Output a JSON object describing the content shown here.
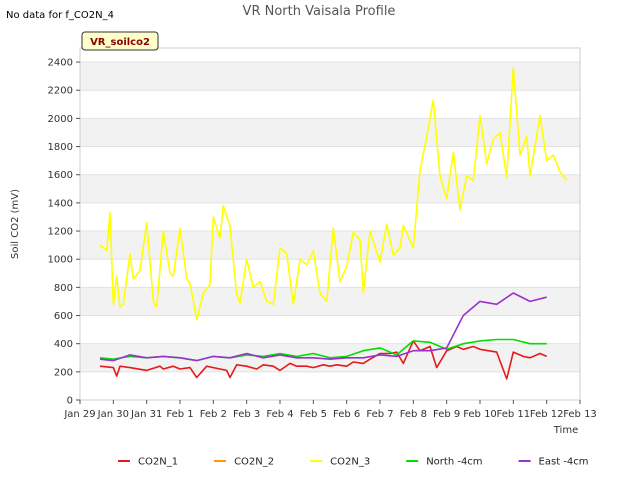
{
  "header": {
    "no_data_text": "No data for f_CO2N_4",
    "tag_label": "VR_soilco2"
  },
  "chart_data": {
    "type": "line",
    "title": "VR North Vaisala Profile",
    "xlabel": "Time",
    "ylabel": "Soil CO2 (mV)",
    "ylim": [
      0,
      2500
    ],
    "xlim": [
      0,
      15
    ],
    "y_ticks": [
      0,
      200,
      400,
      600,
      800,
      1000,
      1200,
      1400,
      1600,
      1800,
      2000,
      2200,
      2400
    ],
    "x_ticks": [
      0,
      1,
      2,
      3,
      4,
      5,
      6,
      7,
      8,
      9,
      10,
      11,
      12,
      13,
      14,
      15
    ],
    "x_tick_labels": [
      "Jan 29",
      "Jan 30",
      "Jan 31",
      "Feb 1",
      "Feb 2",
      "Feb 3",
      "Feb 4",
      "Feb 5",
      "Feb 6",
      "Feb 7",
      "Feb 8",
      "Feb 9",
      "Feb 10",
      "Feb 11",
      "Feb 12",
      "Feb 13"
    ],
    "grid": "horizontal bands",
    "legend_position": "bottom",
    "series": [
      {
        "name": "CO2N_1",
        "color": "#e41a1c",
        "x": [
          0.6,
          1.0,
          1.1,
          1.2,
          1.5,
          2.0,
          2.4,
          2.5,
          2.8,
          3.0,
          3.3,
          3.5,
          3.8,
          4.0,
          4.4,
          4.5,
          4.7,
          5.0,
          5.3,
          5.5,
          5.8,
          6.0,
          6.3,
          6.5,
          6.8,
          7.0,
          7.3,
          7.5,
          7.7,
          8.0,
          8.2,
          8.5,
          8.7,
          9.0,
          9.3,
          9.5,
          9.7,
          10.0,
          10.2,
          10.5,
          10.7,
          11.0,
          11.3,
          11.5,
          11.8,
          12.0,
          12.5,
          12.8,
          13.0,
          13.3,
          13.5,
          13.8,
          14.0
        ],
        "y": [
          240,
          230,
          170,
          240,
          230,
          210,
          240,
          220,
          240,
          220,
          230,
          160,
          240,
          230,
          210,
          160,
          250,
          240,
          220,
          250,
          240,
          210,
          260,
          240,
          240,
          230,
          250,
          240,
          250,
          240,
          270,
          260,
          290,
          330,
          330,
          340,
          260,
          420,
          350,
          380,
          230,
          350,
          380,
          360,
          380,
          360,
          340,
          150,
          340,
          310,
          300,
          330,
          310
        ]
      },
      {
        "name": "CO2N_2",
        "color": "#ff9900",
        "x": [],
        "y": []
      },
      {
        "name": "CO2N_3",
        "color": "#ffff00",
        "x": [
          0.6,
          0.8,
          0.9,
          1.0,
          1.1,
          1.2,
          1.3,
          1.5,
          1.6,
          1.8,
          2.0,
          2.2,
          2.3,
          2.5,
          2.7,
          2.8,
          3.0,
          3.2,
          3.3,
          3.5,
          3.7,
          3.9,
          4.0,
          4.2,
          4.3,
          4.5,
          4.7,
          4.8,
          5.0,
          5.2,
          5.4,
          5.6,
          5.8,
          6.0,
          6.2,
          6.4,
          6.6,
          6.8,
          7.0,
          7.2,
          7.4,
          7.6,
          7.8,
          8.0,
          8.2,
          8.4,
          8.5,
          8.7,
          9.0,
          9.2,
          9.4,
          9.6,
          9.7,
          10.0,
          10.2,
          10.4,
          10.6,
          10.8,
          11.0,
          11.2,
          11.4,
          11.6,
          11.8,
          12.0,
          12.2,
          12.4,
          12.6,
          12.8,
          13.0,
          13.2,
          13.4,
          13.5,
          13.7,
          13.8,
          14.0,
          14.2,
          14.4,
          14.6
        ],
        "y": [
          1100,
          1060,
          1330,
          680,
          880,
          660,
          680,
          1040,
          860,
          920,
          1260,
          700,
          660,
          1200,
          900,
          880,
          1220,
          860,
          830,
          570,
          760,
          820,
          1300,
          1150,
          1380,
          1230,
          750,
          690,
          1000,
          800,
          840,
          700,
          680,
          1080,
          1040,
          680,
          1000,
          960,
          1060,
          760,
          700,
          1220,
          840,
          950,
          1190,
          1140,
          760,
          1200,
          980,
          1250,
          1030,
          1080,
          1240,
          1080,
          1630,
          1870,
          2130,
          1590,
          1430,
          1760,
          1350,
          1590,
          1560,
          2020,
          1680,
          1850,
          1900,
          1580,
          2360,
          1740,
          1870,
          1590,
          1880,
          2020,
          1700,
          1740,
          1620,
          1560
        ]
      },
      {
        "name": "North -4cm",
        "color": "#00dd00",
        "x": [
          0.6,
          1.0,
          1.5,
          2.0,
          2.5,
          3.0,
          3.5,
          4.0,
          4.5,
          5.0,
          5.5,
          6.0,
          6.5,
          7.0,
          7.5,
          8.0,
          8.5,
          9.0,
          9.5,
          10.0,
          10.5,
          11.0,
          11.5,
          12.0,
          12.5,
          13.0,
          13.5,
          14.0
        ],
        "y": [
          300,
          290,
          310,
          300,
          310,
          300,
          280,
          310,
          300,
          320,
          310,
          330,
          310,
          330,
          300,
          310,
          350,
          370,
          320,
          420,
          410,
          360,
          400,
          420,
          430,
          430,
          400,
          400
        ]
      },
      {
        "name": "East -4cm",
        "color": "#9933cc",
        "x": [
          0.6,
          1.0,
          1.5,
          2.0,
          2.5,
          3.0,
          3.5,
          4.0,
          4.5,
          5.0,
          5.5,
          6.0,
          6.5,
          7.0,
          7.5,
          8.0,
          8.5,
          9.0,
          9.5,
          10.0,
          10.5,
          11.0,
          11.5,
          12.0,
          12.5,
          13.0,
          13.5,
          14.0
        ],
        "y": [
          290,
          280,
          320,
          300,
          310,
          300,
          280,
          310,
          300,
          330,
          300,
          320,
          300,
          300,
          290,
          300,
          300,
          320,
          310,
          350,
          350,
          370,
          600,
          700,
          680,
          760,
          700,
          730
        ]
      }
    ]
  }
}
